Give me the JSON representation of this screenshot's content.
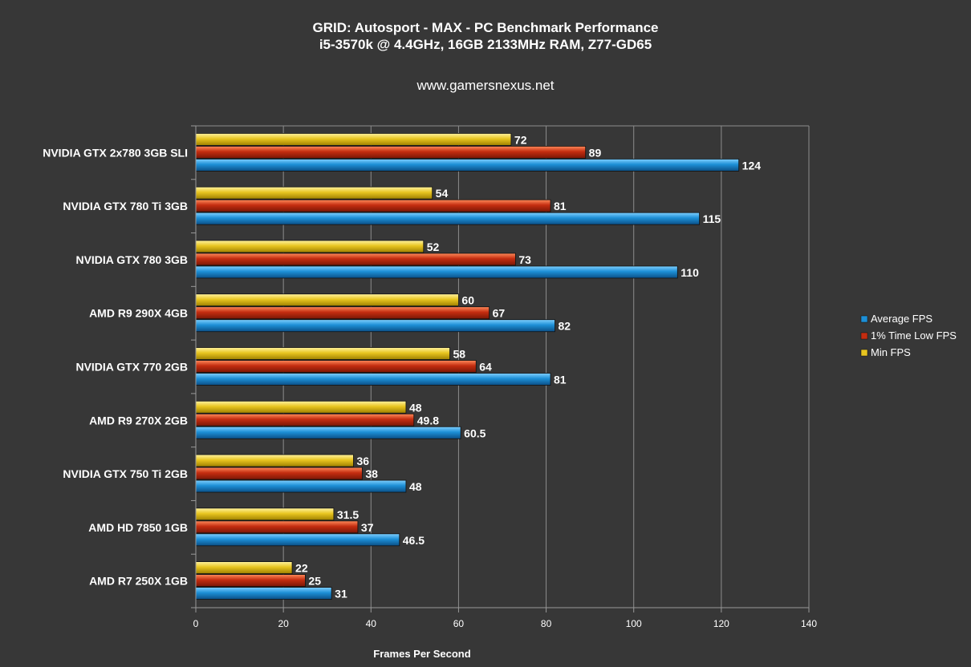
{
  "chart_data": {
    "type": "bar",
    "orientation": "horizontal",
    "title": "GRID: Autosport - MAX - PC Benchmark Performance",
    "subtitle": "i5-3570k @ 4.4GHz, 16GB 2133MHz RAM, Z77-GD65",
    "source": "www.gamersnexus.net",
    "xlabel": "Frames Per Second",
    "ylabel": "",
    "xlim": [
      0,
      140
    ],
    "ticks": [
      "0",
      "20",
      "40",
      "60",
      "80",
      "100",
      "120",
      "140"
    ],
    "tick_values": [
      0,
      20,
      40,
      60,
      80,
      100,
      120,
      140
    ],
    "grid": true,
    "legend_position": "right",
    "categories": [
      "NVIDIA GTX 2x780 3GB SLI",
      "NVIDIA GTX 780 Ti 3GB",
      "NVIDIA GTX 780 3GB",
      "AMD R9 290X 4GB",
      "NVIDIA GTX 770 2GB",
      "AMD R9 270X 2GB",
      "NVIDIA GTX 750 Ti 2GB",
      "AMD HD 7850 1GB",
      "AMD R7 250X 1GB"
    ],
    "series": [
      {
        "name": "Average FPS",
        "color": "#1d8fd6",
        "values": [
          124,
          115,
          110,
          82,
          81,
          60.5,
          48,
          46.5,
          31
        ],
        "labels": [
          "124",
          "115",
          "110",
          "82",
          "81",
          "60.5",
          "48",
          "46.5",
          "31"
        ]
      },
      {
        "name": "1% Time Low FPS",
        "color": "#c42d10",
        "values": [
          89,
          81,
          73,
          67,
          64,
          49.8,
          38,
          37,
          25
        ],
        "labels": [
          "89",
          "81",
          "73",
          "67",
          "64",
          "49.8",
          "38",
          "37",
          "25"
        ]
      },
      {
        "name": "Min FPS",
        "color": "#e8c520",
        "values": [
          72,
          54,
          52,
          60,
          58,
          48,
          36,
          31.5,
          22
        ],
        "labels": [
          "72",
          "54",
          "52",
          "60",
          "58",
          "48",
          "36",
          "31.5",
          "22"
        ]
      }
    ]
  }
}
